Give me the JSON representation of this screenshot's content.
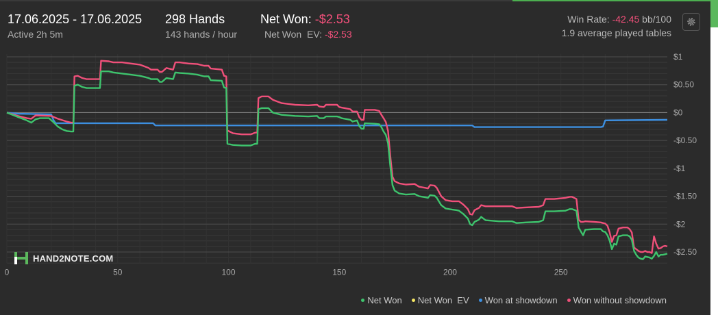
{
  "header": {
    "date_range": "17.06.2025 - 17.06.2025",
    "active": "Active 2h 5m",
    "hands": "298 Hands",
    "hands_per_hour": "143 hands / hour",
    "net_won_label": "Net Won:",
    "net_won_value": "-$2.53",
    "net_won_ev_label": "Net Won  EV:",
    "net_won_ev_value": "-$2.53",
    "win_rate_label": "Win Rate:",
    "win_rate_value": "-42.45",
    "win_rate_unit": "bb/100",
    "avg_tables": "1.9 average played tables"
  },
  "logo": {
    "text": "HAND2NOTE.COM"
  },
  "icons": {
    "settings": "gear-icon",
    "logo": "hand2note-logo-icon"
  },
  "colors": {
    "net_won": "#3ec46d",
    "net_won_ev": "#f5e663",
    "won_at_showdown": "#3d8fe0",
    "won_without_showdown": "#f0507a",
    "negative_text": "#f0507a",
    "background": "#2b2b2b"
  },
  "chart_data": {
    "type": "line",
    "xlim": [
      0,
      298
    ],
    "ylim": [
      -2.7,
      1.05
    ],
    "x_ticks": [
      0,
      50,
      100,
      150,
      200,
      250
    ],
    "x_tick_labels": [
      "0",
      "50",
      "100",
      "150",
      "200",
      "250"
    ],
    "y_ticks": [
      1,
      0.5,
      0,
      -0.5,
      -1,
      -1.5,
      -2,
      -2.5
    ],
    "y_tick_labels": [
      "$1",
      "$0.50",
      "$0",
      "-$0.50",
      "-$1",
      "-$1.50",
      "-$2",
      "-$2.50"
    ],
    "grid": true,
    "legend_position": "bottom-right",
    "series": [
      {
        "name": "Net Won",
        "key": "net_won",
        "points": [
          [
            0,
            0
          ],
          [
            5,
            -0.08
          ],
          [
            9,
            -0.14
          ],
          [
            11,
            -0.18
          ],
          [
            13,
            -0.12
          ],
          [
            15,
            -0.1
          ],
          [
            17,
            -0.1
          ],
          [
            19,
            -0.1
          ],
          [
            21,
            -0.17
          ],
          [
            23,
            -0.25
          ],
          [
            25,
            -0.3
          ],
          [
            27,
            -0.33
          ],
          [
            29,
            -0.34
          ],
          [
            30,
            -0.34
          ],
          [
            30.5,
            0.48
          ],
          [
            32,
            0.5
          ],
          [
            34,
            0.46
          ],
          [
            36,
            0.44
          ],
          [
            42,
            0.44
          ],
          [
            42.5,
            0.74
          ],
          [
            46,
            0.74
          ],
          [
            48,
            0.72
          ],
          [
            52,
            0.7
          ],
          [
            56,
            0.68
          ],
          [
            60,
            0.66
          ],
          [
            64,
            0.62
          ],
          [
            65,
            0.6
          ],
          [
            68,
            0.6
          ],
          [
            69,
            0.55
          ],
          [
            70,
            0.55
          ],
          [
            72,
            0.62
          ],
          [
            75,
            0.6
          ],
          [
            76,
            0.72
          ],
          [
            78,
            0.71
          ],
          [
            82,
            0.7
          ],
          [
            86,
            0.68
          ],
          [
            89,
            0.65
          ],
          [
            91,
            0.65
          ],
          [
            92,
            0.58
          ],
          [
            97,
            0.57
          ],
          [
            98,
            0.45
          ],
          [
            99,
            0.44
          ],
          [
            99.5,
            -0.56
          ],
          [
            102,
            -0.58
          ],
          [
            106,
            -0.59
          ],
          [
            110,
            -0.59
          ],
          [
            112,
            -0.56
          ],
          [
            113,
            -0.56
          ],
          [
            113.5,
            0.06
          ],
          [
            115,
            0.08
          ],
          [
            118,
            0.08
          ],
          [
            119,
            0.04
          ],
          [
            120,
            0.0
          ],
          [
            124,
            -0.04
          ],
          [
            130,
            -0.06
          ],
          [
            136,
            -0.07
          ],
          [
            140,
            -0.06
          ],
          [
            141,
            -0.1
          ],
          [
            143,
            -0.1
          ],
          [
            144,
            -0.07
          ],
          [
            149,
            -0.07
          ],
          [
            150,
            -0.08
          ],
          [
            151,
            -0.1
          ],
          [
            155,
            -0.13
          ],
          [
            156,
            -0.16
          ],
          [
            158,
            -0.14
          ],
          [
            159,
            -0.24
          ],
          [
            160,
            -0.29
          ],
          [
            161,
            -0.29
          ],
          [
            161.5,
            -0.19
          ],
          [
            166,
            -0.2
          ],
          [
            168,
            -0.21
          ],
          [
            169,
            -0.26
          ],
          [
            170,
            -0.34
          ],
          [
            171,
            -0.4
          ],
          [
            172,
            -0.55
          ],
          [
            173,
            -0.95
          ],
          [
            174,
            -1.3
          ],
          [
            175,
            -1.4
          ],
          [
            177,
            -1.45
          ],
          [
            180,
            -1.47
          ],
          [
            184,
            -1.46
          ],
          [
            186,
            -1.5
          ],
          [
            189,
            -1.52
          ],
          [
            190,
            -1.53
          ],
          [
            191,
            -1.48
          ],
          [
            193,
            -1.49
          ],
          [
            194,
            -1.53
          ],
          [
            196,
            -1.66
          ],
          [
            198,
            -1.72
          ],
          [
            201,
            -1.74
          ],
          [
            203,
            -1.75
          ],
          [
            204,
            -1.76
          ],
          [
            206,
            -1.82
          ],
          [
            208,
            -1.9
          ],
          [
            209,
            -2.0
          ],
          [
            210,
            -2.02
          ],
          [
            211,
            -1.96
          ],
          [
            213,
            -1.92
          ],
          [
            214,
            -1.87
          ],
          [
            216,
            -1.93
          ],
          [
            222,
            -1.95
          ],
          [
            228,
            -1.95
          ],
          [
            230,
            -1.98
          ],
          [
            234,
            -1.97
          ],
          [
            240,
            -1.96
          ],
          [
            242,
            -1.93
          ],
          [
            243,
            -1.77
          ],
          [
            247,
            -1.77
          ],
          [
            252,
            -1.76
          ],
          [
            254,
            -1.73
          ],
          [
            255,
            -1.73
          ],
          [
            257,
            -1.76
          ],
          [
            258,
            -2.06
          ],
          [
            259,
            -2.13
          ],
          [
            260,
            -2.2
          ],
          [
            261,
            -2.1
          ],
          [
            265,
            -2.09
          ],
          [
            268,
            -2.09
          ],
          [
            269,
            -2.13
          ],
          [
            270,
            -2.14
          ],
          [
            271,
            -2.2
          ],
          [
            272,
            -2.3
          ],
          [
            273,
            -2.45
          ],
          [
            274,
            -2.35
          ],
          [
            275,
            -2.37
          ],
          [
            276,
            -2.22
          ],
          [
            278,
            -2.2
          ],
          [
            280,
            -2.2
          ],
          [
            281,
            -2.22
          ],
          [
            282,
            -2.28
          ],
          [
            283,
            -2.48
          ],
          [
            284,
            -2.55
          ],
          [
            285,
            -2.6
          ],
          [
            286,
            -2.62
          ],
          [
            287,
            -2.63
          ],
          [
            288,
            -2.58
          ],
          [
            289,
            -2.59
          ],
          [
            290,
            -2.6
          ],
          [
            291,
            -2.62
          ],
          [
            292,
            -2.57
          ],
          [
            293,
            -2.5
          ],
          [
            294,
            -2.58
          ],
          [
            295,
            -2.55
          ],
          [
            296,
            -2.55
          ],
          [
            297,
            -2.54
          ],
          [
            298,
            -2.53
          ]
        ]
      },
      {
        "name": "Net Won  EV",
        "key": "net_won_ev",
        "points": []
      },
      {
        "name": "Won at showdown",
        "key": "won_at_showdown",
        "points": [
          [
            0,
            0
          ],
          [
            5,
            -0.02
          ],
          [
            20,
            -0.03
          ],
          [
            21,
            -0.13
          ],
          [
            22,
            -0.19
          ],
          [
            66,
            -0.19
          ],
          [
            67,
            -0.23
          ],
          [
            176,
            -0.23
          ],
          [
            210,
            -0.23
          ],
          [
            211,
            -0.26
          ],
          [
            268,
            -0.26
          ],
          [
            269,
            -0.25
          ],
          [
            270,
            -0.14
          ],
          [
            298,
            -0.13
          ]
        ]
      },
      {
        "name": "Won without showdown",
        "key": "won_without_showdown",
        "points": [
          [
            0,
            0
          ],
          [
            5,
            -0.06
          ],
          [
            9,
            -0.1
          ],
          [
            11,
            -0.11
          ],
          [
            13,
            -0.05
          ],
          [
            20,
            -0.06
          ],
          [
            23,
            -0.11
          ],
          [
            27,
            -0.16
          ],
          [
            29,
            -0.18
          ],
          [
            30,
            -0.18
          ],
          [
            30.5,
            0.65
          ],
          [
            32,
            0.66
          ],
          [
            34,
            0.62
          ],
          [
            36,
            0.6
          ],
          [
            42,
            0.6
          ],
          [
            42.5,
            0.93
          ],
          [
            46,
            0.92
          ],
          [
            48,
            0.9
          ],
          [
            52,
            0.9
          ],
          [
            56,
            0.88
          ],
          [
            60,
            0.86
          ],
          [
            64,
            0.8
          ],
          [
            65,
            0.77
          ],
          [
            68,
            0.77
          ],
          [
            69,
            0.73
          ],
          [
            70,
            0.73
          ],
          [
            72,
            0.8
          ],
          [
            75,
            0.77
          ],
          [
            76,
            0.9
          ],
          [
            78,
            0.9
          ],
          [
            82,
            0.88
          ],
          [
            86,
            0.87
          ],
          [
            89,
            0.84
          ],
          [
            91,
            0.84
          ],
          [
            92,
            0.79
          ],
          [
            97,
            0.77
          ],
          [
            98,
            0.66
          ],
          [
            99,
            0.65
          ],
          [
            99.5,
            -0.32
          ],
          [
            102,
            -0.37
          ],
          [
            106,
            -0.39
          ],
          [
            110,
            -0.39
          ],
          [
            112,
            -0.36
          ],
          [
            113,
            -0.36
          ],
          [
            113.5,
            0.26
          ],
          [
            115,
            0.29
          ],
          [
            118,
            0.29
          ],
          [
            119,
            0.26
          ],
          [
            120,
            0.23
          ],
          [
            124,
            0.17
          ],
          [
            130,
            0.14
          ],
          [
            136,
            0.13
          ],
          [
            140,
            0.14
          ],
          [
            141,
            0.11
          ],
          [
            143,
            0.1
          ],
          [
            144,
            0.14
          ],
          [
            149,
            0.14
          ],
          [
            150,
            0.1
          ],
          [
            151,
            0.09
          ],
          [
            155,
            0.06
          ],
          [
            156,
            0.02
          ],
          [
            158,
            0.02
          ],
          [
            159,
            -0.08
          ],
          [
            160,
            -0.13
          ],
          [
            161,
            -0.13
          ],
          [
            161.5,
            0.05
          ],
          [
            166,
            0.05
          ],
          [
            168,
            0.03
          ],
          [
            169,
            -0.04
          ],
          [
            170,
            -0.1
          ],
          [
            171,
            -0.17
          ],
          [
            172,
            -0.33
          ],
          [
            173,
            -0.77
          ],
          [
            174,
            -1.15
          ],
          [
            175,
            -1.23
          ],
          [
            177,
            -1.27
          ],
          [
            180,
            -1.29
          ],
          [
            184,
            -1.28
          ],
          [
            186,
            -1.33
          ],
          [
            189,
            -1.35
          ],
          [
            190,
            -1.36
          ],
          [
            191,
            -1.3
          ],
          [
            193,
            -1.31
          ],
          [
            194,
            -1.35
          ],
          [
            196,
            -1.5
          ],
          [
            198,
            -1.57
          ],
          [
            201,
            -1.59
          ],
          [
            203,
            -1.59
          ],
          [
            204,
            -1.59
          ],
          [
            206,
            -1.65
          ],
          [
            208,
            -1.73
          ],
          [
            209,
            -1.82
          ],
          [
            210,
            -1.83
          ],
          [
            211,
            -1.75
          ],
          [
            213,
            -1.71
          ],
          [
            214,
            -1.66
          ],
          [
            216,
            -1.68
          ],
          [
            222,
            -1.68
          ],
          [
            228,
            -1.68
          ],
          [
            230,
            -1.71
          ],
          [
            234,
            -1.7
          ],
          [
            240,
            -1.69
          ],
          [
            242,
            -1.66
          ],
          [
            243,
            -1.55
          ],
          [
            247,
            -1.55
          ],
          [
            252,
            -1.53
          ],
          [
            254,
            -1.51
          ],
          [
            255,
            -1.51
          ],
          [
            257,
            -1.55
          ],
          [
            258,
            -1.92
          ],
          [
            259,
            -1.96
          ],
          [
            260,
            -1.96
          ],
          [
            261,
            -1.95
          ],
          [
            265,
            -1.96
          ],
          [
            268,
            -1.97
          ],
          [
            269,
            -1.98
          ],
          [
            270,
            -1.99
          ],
          [
            271,
            -2.03
          ],
          [
            272,
            -2.15
          ],
          [
            273,
            -2.32
          ],
          [
            274,
            -2.21
          ],
          [
            275,
            -2.2
          ],
          [
            276,
            -2.08
          ],
          [
            278,
            -2.06
          ],
          [
            280,
            -2.06
          ],
          [
            281,
            -2.09
          ],
          [
            282,
            -2.15
          ],
          [
            283,
            -2.42
          ],
          [
            284,
            -2.45
          ],
          [
            285,
            -2.48
          ],
          [
            286,
            -2.5
          ],
          [
            287,
            -2.5
          ],
          [
            288,
            -2.48
          ],
          [
            289,
            -2.5
          ],
          [
            290,
            -2.5
          ],
          [
            291,
            -2.52
          ],
          [
            292,
            -2.22
          ],
          [
            293,
            -2.35
          ],
          [
            294,
            -2.44
          ],
          [
            295,
            -2.43
          ],
          [
            296,
            -2.4
          ],
          [
            297,
            -2.39
          ],
          [
            298,
            -2.4
          ]
        ]
      }
    ]
  }
}
